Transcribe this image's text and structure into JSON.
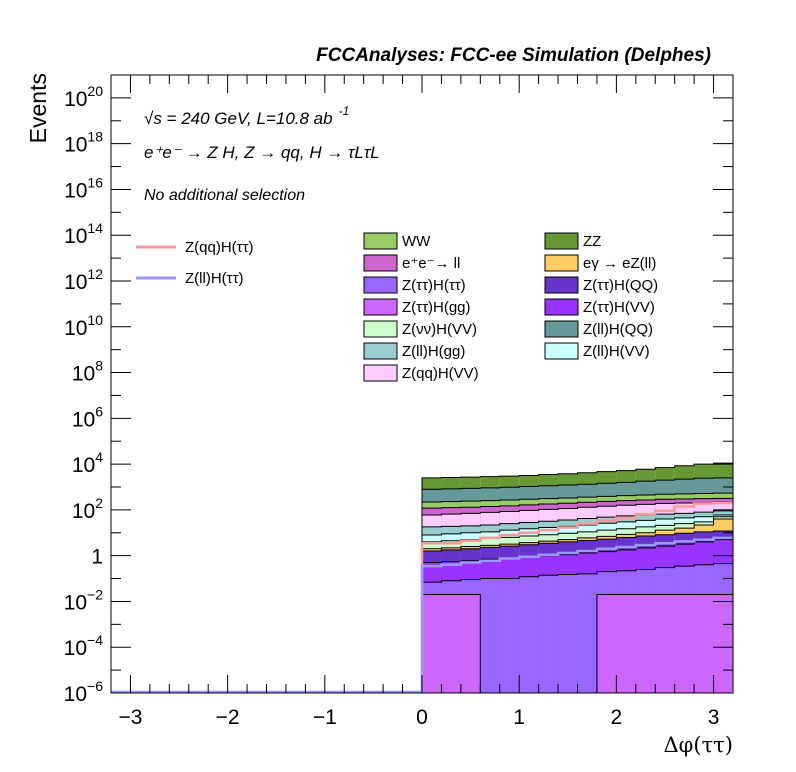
{
  "title": "FCCAnalyses: FCC-ee Simulation (Delphes)",
  "annotations": {
    "energy_line": "√s = 240 GeV, L=10.8 ab",
    "lumi_exponent": "-1",
    "process_line": "e⁺e⁻ → Z H, Z → qq, H → τLτL",
    "selection_line": "No additional selection"
  },
  "chart_data": {
    "type": "histogram",
    "xlabel": "Δφ(ττ)",
    "ylabel": "Events",
    "xlim": [
      -3.2,
      3.2
    ],
    "ylim": [
      1e-06,
      1e+21
    ],
    "yscale": "log",
    "x_ticks": [
      {
        "value": -3,
        "label": "−3"
      },
      {
        "value": -2,
        "label": "−2"
      },
      {
        "value": -1,
        "label": "−1"
      },
      {
        "value": 0,
        "label": "0"
      },
      {
        "value": 1,
        "label": "1"
      },
      {
        "value": 2,
        "label": "2"
      },
      {
        "value": 3,
        "label": "3"
      }
    ],
    "y_ticks": [
      {
        "exp": -6,
        "base": "10",
        "sup": "−6"
      },
      {
        "exp": -4,
        "base": "10",
        "sup": "−4"
      },
      {
        "exp": -2,
        "base": "10",
        "sup": "−2"
      },
      {
        "exp": 0,
        "base": "1",
        "sup": ""
      },
      {
        "exp": 2,
        "base": "10",
        "sup": "2"
      },
      {
        "exp": 4,
        "base": "10",
        "sup": "4"
      },
      {
        "exp": 6,
        "base": "10",
        "sup": "6"
      },
      {
        "exp": 8,
        "base": "10",
        "sup": "8"
      },
      {
        "exp": 10,
        "base": "10",
        "sup": "10"
      },
      {
        "exp": 12,
        "base": "10",
        "sup": "12"
      },
      {
        "exp": 14,
        "base": "10",
        "sup": "14"
      },
      {
        "exp": 16,
        "base": "10",
        "sup": "16"
      },
      {
        "exp": 18,
        "base": "10",
        "sup": "18"
      },
      {
        "exp": 20,
        "base": "10",
        "sup": "20"
      }
    ],
    "bin_edges": [
      0,
      0.2,
      0.4,
      0.6,
      0.8,
      1.0,
      1.2,
      1.4,
      1.6,
      1.8,
      2.0,
      2.2,
      2.4,
      2.6,
      2.8,
      3.0,
      3.2
    ],
    "stack_series": [
      {
        "name": "Z(ττ)H(gg)",
        "color": "#cc66ff",
        "cumulative": [
          0.02,
          0.02,
          0.02,
          1e-06,
          1e-06,
          1e-06,
          1e-06,
          1e-06,
          1e-06,
          0.02,
          0.02,
          0.02,
          0.02,
          0.02,
          0.02,
          0.02
        ]
      },
      {
        "name": "Z(ττ)H(ττ)",
        "color": "#9966ff",
        "cumulative": [
          0.07,
          0.08,
          0.09,
          0.1,
          0.1,
          0.12,
          0.14,
          0.15,
          0.16,
          0.2,
          0.22,
          0.25,
          0.3,
          0.35,
          0.4,
          0.45
        ]
      },
      {
        "name": "Z(ττ)H(VV)",
        "color": "#9933ff",
        "cumulative": [
          0.5,
          0.55,
          0.6,
          0.7,
          0.75,
          0.85,
          1.0,
          1.1,
          1.3,
          1.5,
          1.8,
          2.2,
          2.6,
          3.2,
          4.0,
          5.0
        ]
      },
      {
        "name": "Z(ττ)H(QQ)",
        "color": "#6633cc",
        "cumulative": [
          1.6,
          1.8,
          2.0,
          2.3,
          2.6,
          3.0,
          3.5,
          4.0,
          4.6,
          5.3,
          6.2,
          7.2,
          8.2,
          9.5,
          11,
          12
        ]
      },
      {
        "name": "eγ → eZ(ll)",
        "color": "#ffcc66",
        "cumulative": [
          2.0,
          2.2,
          2.5,
          2.8,
          3.2,
          3.7,
          4.3,
          5.0,
          6.0,
          7.0,
          8.5,
          10,
          13,
          16,
          22,
          40
        ]
      },
      {
        "name": "Z(νν)H(VV)",
        "color": "#ccffcc",
        "cumulative": [
          4.0,
          4.5,
          5.0,
          5.6,
          6.3,
          7.2,
          8.2,
          9.5,
          11,
          13,
          15,
          18,
          21,
          25,
          30,
          50
        ]
      },
      {
        "name": "Z(ll)H(VV)",
        "color": "#ccffff",
        "cumulative": [
          8,
          9,
          10,
          11,
          13,
          15,
          17,
          19,
          22,
          26,
          30,
          35,
          40,
          45,
          50,
          60
        ]
      },
      {
        "name": "Z(ll)H(gg)",
        "color": "#99cccc",
        "cumulative": [
          18,
          19,
          20,
          22,
          25,
          28,
          32,
          36,
          42,
          48,
          55,
          60,
          65,
          70,
          80,
          90
        ]
      },
      {
        "name": "Z(qq)H(VV)",
        "color": "#ffccff",
        "cumulative": [
          60,
          65,
          70,
          78,
          85,
          95,
          105,
          115,
          130,
          145,
          160,
          175,
          190,
          200,
          210,
          220
        ]
      },
      {
        "name": "e⁺e⁻→ ll",
        "color": "#cc66cc",
        "cumulative": [
          120,
          125,
          130,
          140,
          150,
          165,
          180,
          195,
          215,
          235,
          255,
          270,
          290,
          300,
          310,
          320
        ]
      },
      {
        "name": "WW",
        "color": "#99cc66",
        "cumulative": [
          220,
          230,
          240,
          255,
          270,
          290,
          310,
          330,
          360,
          390,
          420,
          450,
          480,
          500,
          520,
          540
        ]
      },
      {
        "name": "Z(ll)H(QQ)",
        "color": "#669999",
        "cumulative": [
          800,
          830,
          870,
          920,
          980,
          1050,
          1130,
          1220,
          1320,
          1450,
          1600,
          1800,
          2000,
          2200,
          2400,
          2500
        ]
      },
      {
        "name": "ZZ",
        "color": "#669933",
        "cumulative": [
          2500,
          2600,
          2700,
          2850,
          3000,
          3200,
          3500,
          3800,
          4200,
          4700,
          5200,
          6000,
          7000,
          8500,
          10000,
          11000
        ]
      }
    ],
    "line_series": [
      {
        "name": "Z(qq)H(ττ)",
        "color": "#ff9999",
        "values": [
          3.5,
          3.5,
          4.5,
          6,
          8,
          10,
          13,
          17,
          25,
          34,
          45,
          65,
          90,
          140,
          190,
          200
        ]
      },
      {
        "name": "Z(ll)H(ττ)",
        "color": "#9999ff",
        "values": [
          0.35,
          0.4,
          0.5,
          0.6,
          0.75,
          0.9,
          1.1,
          1.3,
          1.6,
          2.0,
          2.4,
          2.9,
          3.5,
          4.2,
          5.0,
          6.0
        ]
      }
    ],
    "legend": {
      "lines": [
        {
          "name": "Z(qq)H(ττ)",
          "color": "#ff9999"
        },
        {
          "name": "Z(ll)H(ττ)",
          "color": "#9999ff"
        }
      ],
      "boxes": [
        {
          "name": "WW",
          "color": "#99cc66"
        },
        {
          "name": "ZZ",
          "color": "#669933"
        },
        {
          "name": "e⁺e⁻→ ll",
          "color": "#cc66cc"
        },
        {
          "name": "eγ → eZ(ll)",
          "color": "#ffcc66"
        },
        {
          "name": "Z(ττ)H(ττ)",
          "color": "#9966ff"
        },
        {
          "name": "Z(ττ)H(QQ)",
          "color": "#6633cc"
        },
        {
          "name": "Z(ττ)H(gg)",
          "color": "#cc66ff"
        },
        {
          "name": "Z(ττ)H(VV)",
          "color": "#9933ff"
        },
        {
          "name": "Z(νν)H(VV)",
          "color": "#ccffcc"
        },
        {
          "name": "Z(ll)H(QQ)",
          "color": "#669999"
        },
        {
          "name": "Z(ll)H(gg)",
          "color": "#99cccc"
        },
        {
          "name": "Z(ll)H(VV)",
          "color": "#ccffff"
        },
        {
          "name": "Z(qq)H(VV)",
          "color": "#ffccff"
        }
      ]
    },
    "grid": false
  }
}
